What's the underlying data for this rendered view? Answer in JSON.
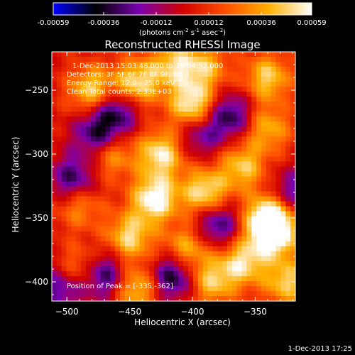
{
  "chart_data": {
    "type": "heatmap",
    "title": "Reconstructed RHESSI Image",
    "xlabel": "Heliocentric X (arcsec)",
    "ylabel": "Heliocentric Y (arcsec)",
    "xlim": [
      -512,
      -318
    ],
    "ylim": [
      -415,
      -220
    ],
    "xticks": [
      -500,
      -450,
      -400,
      -350
    ],
    "yticks": [
      -250,
      -300,
      -350,
      -400
    ],
    "colorbar": {
      "ticks": [
        -0.00059,
        -0.00036,
        -0.00012,
        0.00012,
        0.00036,
        0.00059
      ],
      "tick_labels": [
        "-0.00059",
        "-0.00036",
        "-0.00012",
        "0.00012",
        "0.00036",
        "0.00059"
      ],
      "range": [
        -0.00059,
        0.00059
      ],
      "colors": [
        "#0000ff",
        "#000000",
        "#7a00b0",
        "#d00000",
        "#ff5000",
        "#ffb000",
        "#ffffff"
      ]
    },
    "units": {
      "prefix": "(photons cm",
      "exp1": "-2",
      "mid": " s",
      "exp2": "-1",
      "mid2": " asec",
      "exp3": "-2",
      "suffix": ")"
    },
    "annotations": {
      "time_range": "1-Dec-2013 15:03:48.000 to 15:04:52.000",
      "detectors": "Detectors: 3F 5F 6F 7F 8F 9F, All 0",
      "energy": "Energy Range: 12.0 - 25.0 keV",
      "algorithm": "Clean    Total counts: 2.33E+03",
      "peak": "Position of Peak = [-335,-362]"
    },
    "hotspots": [
      [
        -480,
        -250,
        0.00045
      ],
      [
        -445,
        -245,
        0.0005
      ],
      [
        -415,
        -230,
        0.0004
      ],
      [
        -400,
        -262,
        0.00055
      ],
      [
        -390,
        -232,
        0.00035
      ],
      [
        -340,
        -240,
        0.00042
      ],
      [
        -340,
        -280,
        0.00035
      ],
      [
        -425,
        -300,
        0.0005
      ],
      [
        -430,
        -335,
        0.00058
      ],
      [
        -450,
        -365,
        0.00045
      ],
      [
        -390,
        -330,
        0.0005
      ],
      [
        -360,
        -310,
        0.0004
      ],
      [
        -340,
        -350,
        0.00055
      ],
      [
        -335,
        -362,
        0.00059
      ],
      [
        -360,
        -385,
        0.00045
      ],
      [
        -385,
        -400,
        0.0004
      ],
      [
        -465,
        -300,
        0.00035
      ],
      [
        -490,
        -340,
        0.0003
      ],
      [
        -490,
        -390,
        0.0003
      ],
      [
        -445,
        -405,
        0.00042
      ],
      [
        -405,
        -375,
        0.0004
      ],
      [
        -325,
        -400,
        0.00042
      ]
    ],
    "coldspots": [
      [
        -475,
        -285,
        -0.00045
      ],
      [
        -460,
        -265,
        -0.0004
      ],
      [
        -370,
        -270,
        -0.0004
      ],
      [
        -395,
        -285,
        -0.0003
      ],
      [
        -495,
        -320,
        -0.0004
      ],
      [
        -470,
        -395,
        -0.00045
      ],
      [
        -415,
        -395,
        -0.0005
      ],
      [
        -380,
        -355,
        -0.0004
      ],
      [
        -320,
        -330,
        -0.0003
      ],
      [
        -505,
        -405,
        -0.00035
      ]
    ]
  },
  "footer": {
    "timestamp": "1-Dec-2013 17:25"
  }
}
